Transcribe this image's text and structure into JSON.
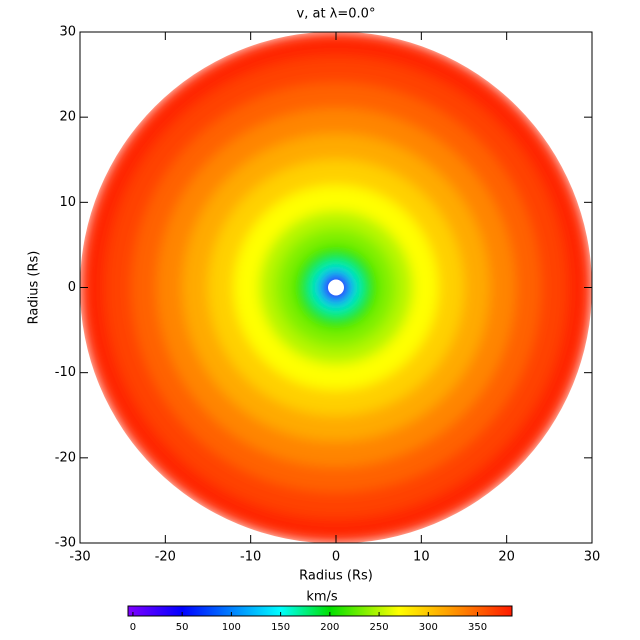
{
  "chart_data": {
    "type": "polar-heatmap",
    "title": "v, at λ=0.0°",
    "x_label": "Radius (Rs)",
    "y_label": "Radius (Rs)",
    "xlim": [
      -30,
      30
    ],
    "ylim": [
      -30,
      30
    ],
    "xticks": [
      -30,
      -20,
      -10,
      0,
      10,
      20,
      30
    ],
    "yticks": [
      -30,
      -20,
      -10,
      0,
      10,
      20,
      30
    ],
    "x": [
      30,
      27,
      24,
      21,
      18,
      15,
      12,
      9,
      7,
      5,
      4,
      3,
      2,
      1.5
    ],
    "values": [
      378,
      365,
      350,
      333,
      315,
      295,
      270,
      250,
      235,
      215,
      195,
      160,
      90,
      30
    ],
    "colorbar": {
      "label": "km/s",
      "clim": [
        -5,
        385
      ],
      "ticks": [
        0,
        50,
        100,
        150,
        200,
        250,
        300,
        350
      ],
      "colorscale": [
        [
          -5,
          "#8000ff"
        ],
        [
          50,
          "#0000ff"
        ],
        [
          150,
          "#00ffff"
        ],
        [
          200,
          "#00e000"
        ],
        [
          270,
          "#ffff00"
        ],
        [
          320,
          "#ffa000"
        ],
        [
          385,
          "#ff1a00"
        ]
      ]
    }
  }
}
